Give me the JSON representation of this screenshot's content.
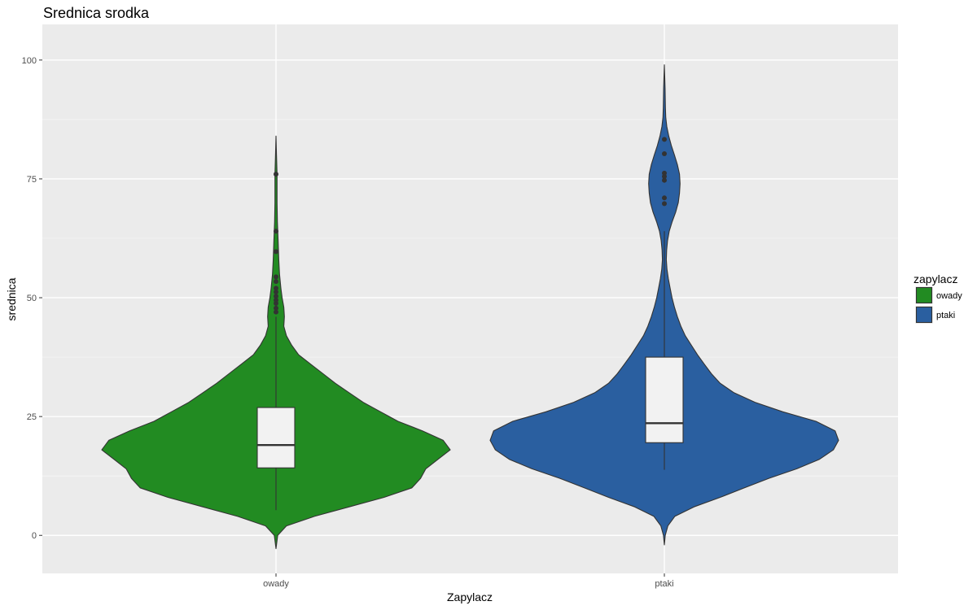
{
  "chart_data": {
    "type": "violin",
    "title": "Srednica srodka",
    "xlabel": "Zapylacz",
    "ylabel": "srednica",
    "categories": [
      "owady",
      "ptaki"
    ],
    "ylim": [
      -8,
      107.5
    ],
    "yticks": [
      0,
      25,
      50,
      75,
      100
    ],
    "grid": true,
    "legend": {
      "title": "zapylacz",
      "position": "right",
      "entries": [
        {
          "label": "owady",
          "color": "#228B22"
        },
        {
          "label": "ptaki",
          "color": "#2A5FA0"
        }
      ]
    },
    "series": [
      {
        "name": "owady",
        "color": "#228B22",
        "box": {
          "min": 5.3,
          "q1": 14.2,
          "median": 19.0,
          "q3": 26.9,
          "whisker_high": 46.0
        },
        "outliers": [
          47.0,
          47.8,
          48.8,
          49.5,
          50.3,
          51.2,
          52.0,
          53.4,
          54.4,
          59.7,
          64.0,
          76.0
        ],
        "violin": [
          [
            -2.8,
            0.0
          ],
          [
            0.0,
            0.01
          ],
          [
            2.0,
            0.06
          ],
          [
            4.0,
            0.22
          ],
          [
            6.0,
            0.42
          ],
          [
            8.0,
            0.62
          ],
          [
            10.0,
            0.78
          ],
          [
            12.0,
            0.83
          ],
          [
            14.0,
            0.86
          ],
          [
            16.0,
            0.93
          ],
          [
            18.0,
            1.0
          ],
          [
            20.0,
            0.96
          ],
          [
            22.0,
            0.84
          ],
          [
            24.0,
            0.7
          ],
          [
            26.0,
            0.6
          ],
          [
            28.0,
            0.5
          ],
          [
            30.0,
            0.42
          ],
          [
            32.0,
            0.34
          ],
          [
            34.0,
            0.27
          ],
          [
            36.0,
            0.2
          ],
          [
            38.0,
            0.13
          ],
          [
            40.0,
            0.09
          ],
          [
            42.0,
            0.06
          ],
          [
            44.0,
            0.045
          ],
          [
            46.0,
            0.048
          ],
          [
            48.0,
            0.045
          ],
          [
            50.0,
            0.035
          ],
          [
            52.0,
            0.028
          ],
          [
            55.0,
            0.02
          ],
          [
            58.0,
            0.016
          ],
          [
            62.0,
            0.012
          ],
          [
            66.0,
            0.008
          ],
          [
            70.0,
            0.006
          ],
          [
            74.0,
            0.006
          ],
          [
            76.0,
            0.006
          ],
          [
            80.0,
            0.003
          ],
          [
            84.0,
            0.0
          ]
        ]
      },
      {
        "name": "ptaki",
        "color": "#2A5FA0",
        "box": {
          "min": 13.8,
          "q1": 19.5,
          "median": 23.6,
          "q3": 37.5,
          "whisker_high": 64.0
        },
        "outliers": [
          69.8,
          71.0,
          74.7,
          75.5,
          76.2,
          80.3,
          83.3
        ],
        "violin": [
          [
            -2.0,
            0.0
          ],
          [
            0.0,
            0.005
          ],
          [
            2.0,
            0.02
          ],
          [
            4.0,
            0.06
          ],
          [
            6.0,
            0.17
          ],
          [
            8.0,
            0.32
          ],
          [
            10.0,
            0.46
          ],
          [
            12.0,
            0.6
          ],
          [
            14.0,
            0.76
          ],
          [
            16.0,
            0.89
          ],
          [
            18.0,
            0.97
          ],
          [
            20.0,
            1.0
          ],
          [
            22.0,
            0.98
          ],
          [
            24.0,
            0.87
          ],
          [
            26.0,
            0.68
          ],
          [
            28.0,
            0.52
          ],
          [
            30.0,
            0.4
          ],
          [
            32.0,
            0.32
          ],
          [
            34.0,
            0.27
          ],
          [
            36.0,
            0.23
          ],
          [
            38.0,
            0.19
          ],
          [
            40.0,
            0.155
          ],
          [
            42.0,
            0.12
          ],
          [
            44.0,
            0.095
          ],
          [
            46.0,
            0.075
          ],
          [
            48.0,
            0.058
          ],
          [
            50.0,
            0.044
          ],
          [
            52.0,
            0.033
          ],
          [
            54.0,
            0.023
          ],
          [
            56.0,
            0.015
          ],
          [
            58.0,
            0.011
          ],
          [
            60.0,
            0.013
          ],
          [
            62.0,
            0.018
          ],
          [
            64.0,
            0.028
          ],
          [
            66.0,
            0.045
          ],
          [
            68.0,
            0.065
          ],
          [
            70.0,
            0.08
          ],
          [
            72.0,
            0.087
          ],
          [
            74.0,
            0.09
          ],
          [
            76.0,
            0.087
          ],
          [
            78.0,
            0.075
          ],
          [
            80.0,
            0.058
          ],
          [
            82.0,
            0.04
          ],
          [
            84.0,
            0.025
          ],
          [
            86.0,
            0.014
          ],
          [
            88.0,
            0.008
          ],
          [
            90.0,
            0.006
          ],
          [
            94.0,
            0.004
          ],
          [
            99.0,
            0.0
          ]
        ]
      }
    ]
  }
}
